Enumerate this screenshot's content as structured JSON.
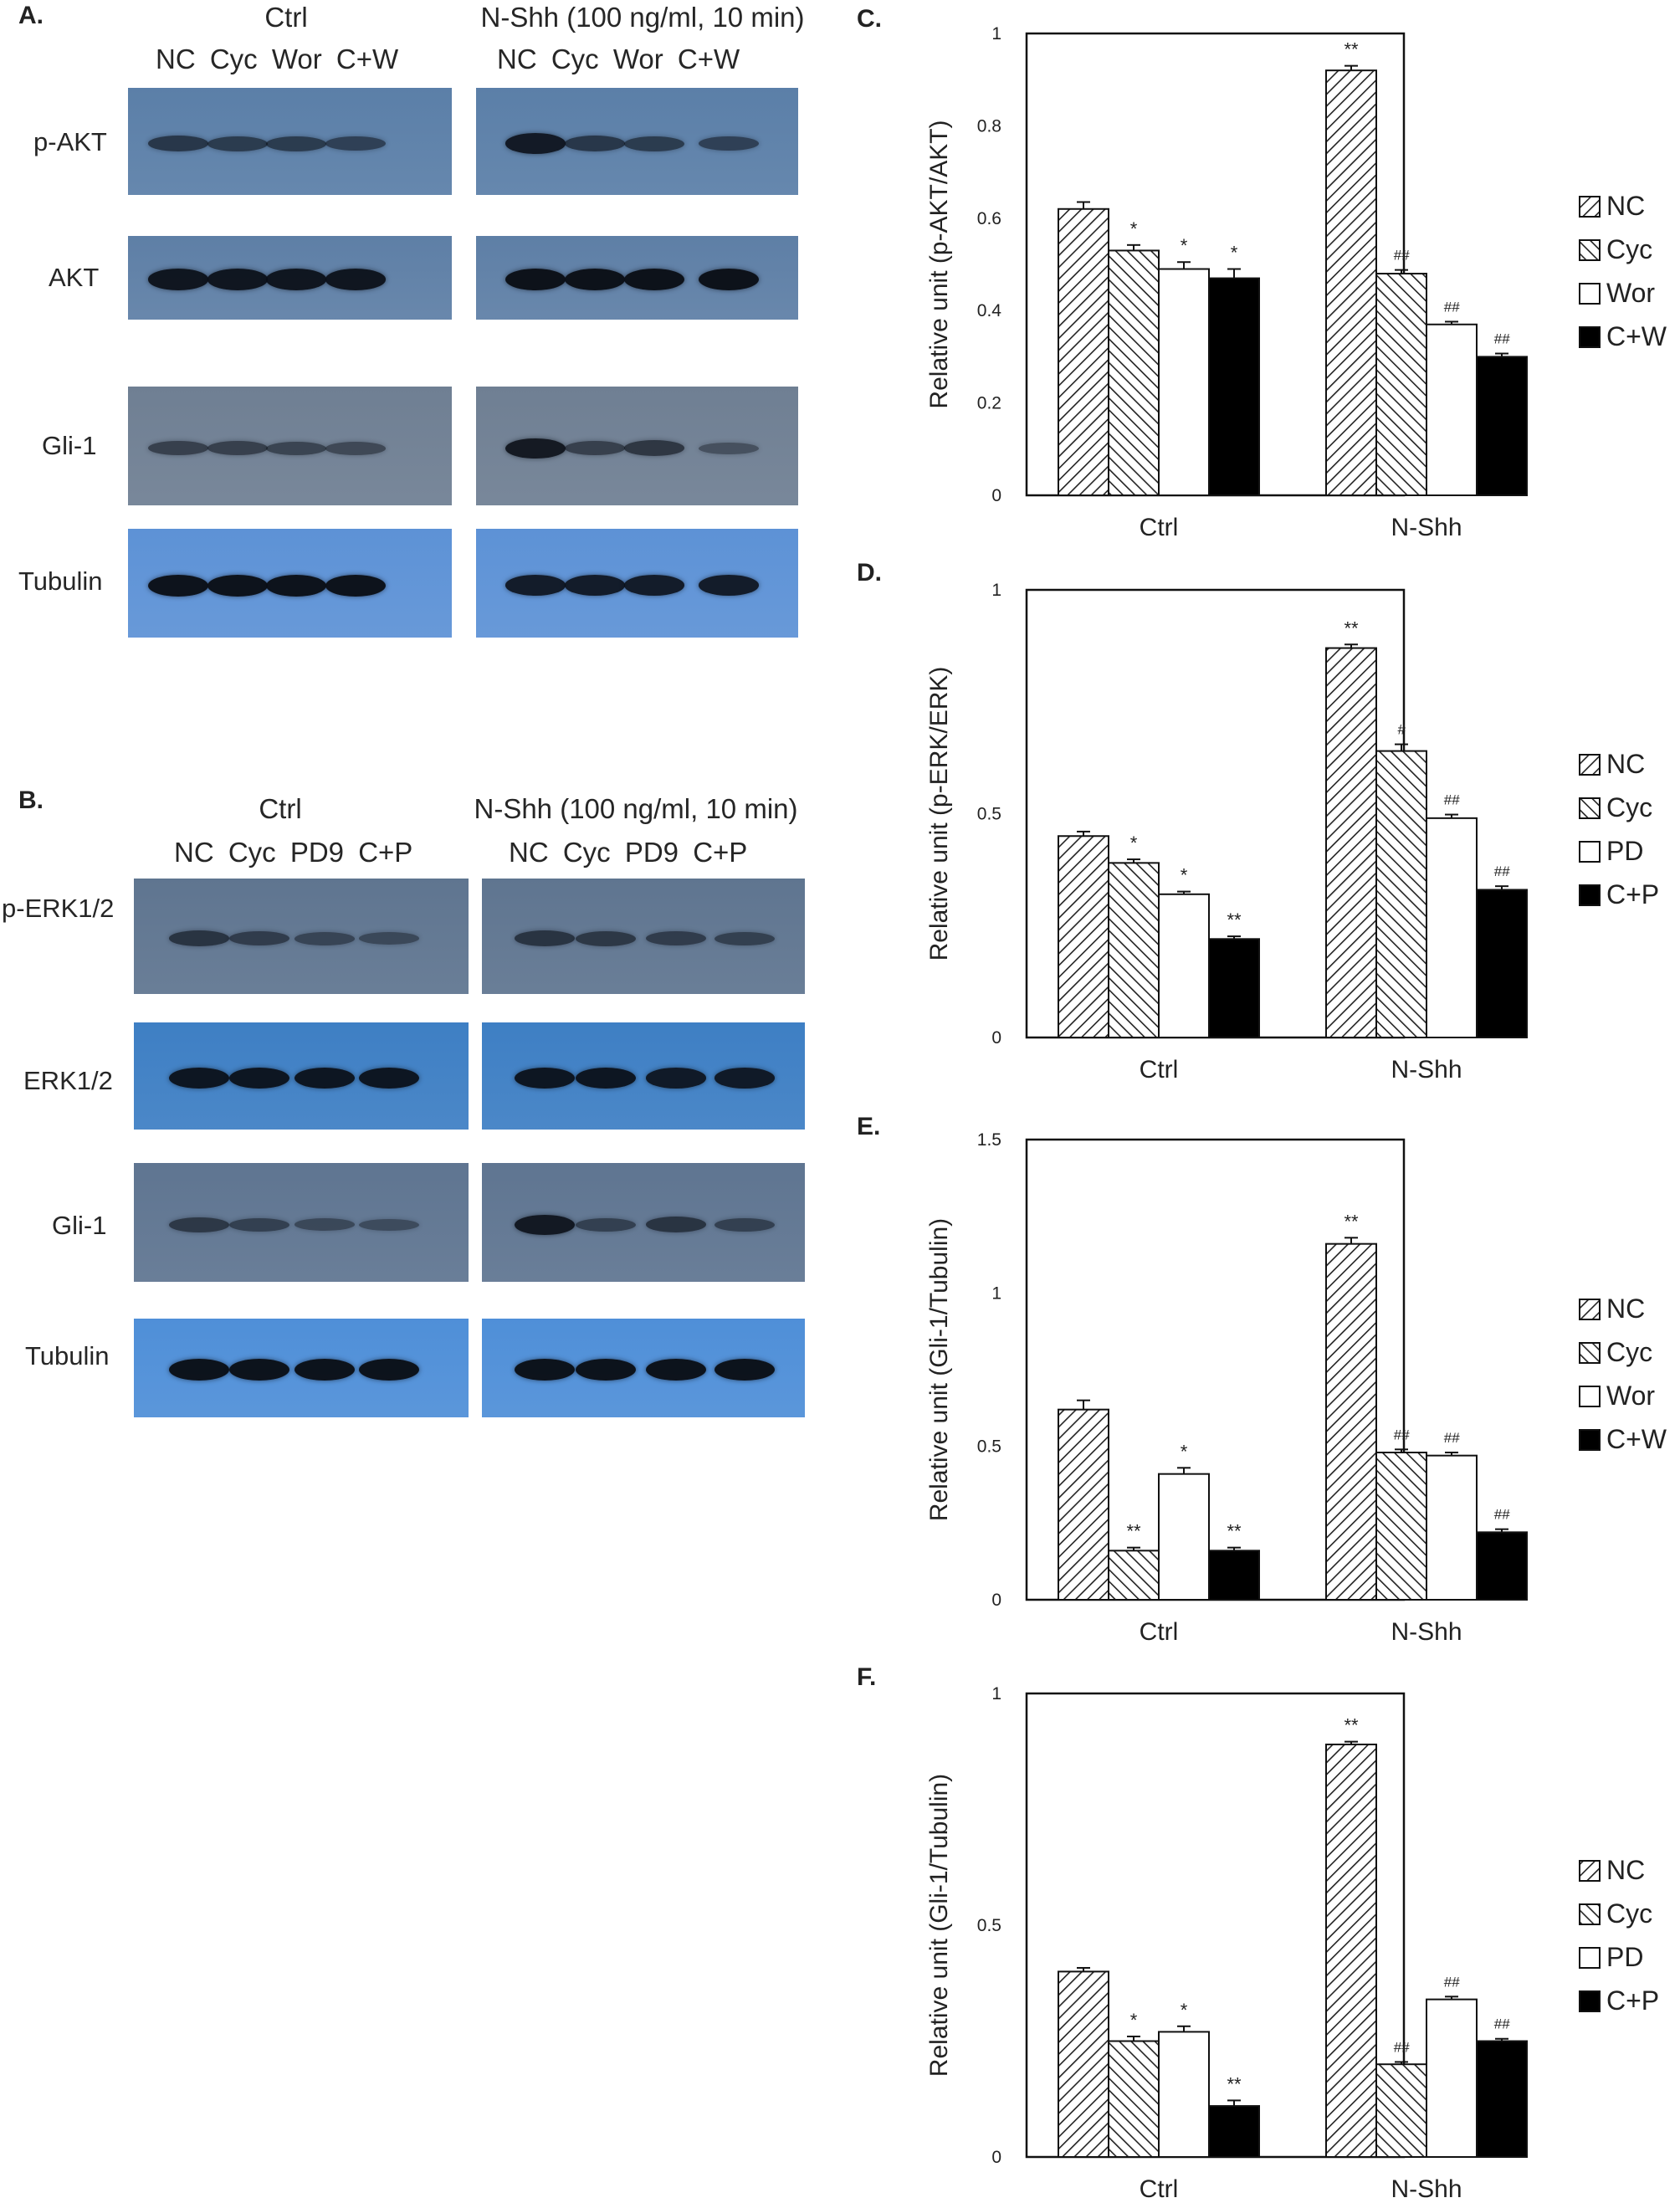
{
  "panels": {
    "A": {
      "letter": "A.",
      "ctrl_header": "Ctrl",
      "shh_header": "N-Shh (100 ng/ml, 10 min)",
      "ctrl_lanes": "NC Cyc Wor C+W",
      "shh_lanes": "NC Cyc Wor C+W",
      "rows": [
        {
          "label": "p-AKT",
          "color": "#5b7fa8",
          "ctrl": [
            0.55,
            0.5,
            0.5,
            0.45
          ],
          "shh": [
            0.9,
            0.55,
            0.5,
            0.45
          ]
        },
        {
          "label": "AKT",
          "color": "#5e7fa6",
          "ctrl": [
            0.95,
            0.95,
            0.95,
            0.95
          ],
          "shh": [
            1.0,
            1.0,
            1.0,
            1.0
          ]
        },
        {
          "label": "Gli-1",
          "color": "#6f7f93",
          "ctrl": [
            0.45,
            0.45,
            0.4,
            0.35
          ],
          "shh": [
            0.9,
            0.45,
            0.55,
            0.25
          ]
        },
        {
          "label": "Tubulin",
          "color": "#5d92d6",
          "ctrl": [
            1.0,
            1.0,
            1.0,
            1.0
          ],
          "shh": [
            0.9,
            0.9,
            0.9,
            0.9
          ]
        }
      ]
    },
    "B": {
      "letter": "B.",
      "ctrl_header": "Ctrl",
      "shh_header": "N-Shh (100 ng/ml, 10 min)",
      "ctrl_lanes": "NC Cyc PD9 C+P",
      "shh_lanes": "NC Cyc PD9 C+P",
      "rows": [
        {
          "label": "p-ERK1/2",
          "color": "#5f7590",
          "ctrl": [
            0.55,
            0.45,
            0.35,
            0.3
          ],
          "shh": [
            0.55,
            0.5,
            0.45,
            0.4
          ]
        },
        {
          "label": "ERK1/2",
          "color": "#3e7fc4",
          "ctrl": [
            0.95,
            0.95,
            0.95,
            0.95
          ],
          "shh": [
            0.95,
            0.95,
            0.9,
            0.9
          ]
        },
        {
          "label": "Gli-1",
          "color": "#5f7591",
          "ctrl": [
            0.5,
            0.4,
            0.3,
            0.25
          ],
          "shh": [
            0.9,
            0.4,
            0.55,
            0.4
          ]
        },
        {
          "label": "Tubulin",
          "color": "#4f8fd8",
          "ctrl": [
            1.0,
            1.0,
            1.0,
            1.0
          ],
          "shh": [
            1.0,
            1.0,
            1.0,
            1.0
          ]
        }
      ]
    },
    "C": {
      "letter": "C."
    },
    "D": {
      "letter": "D."
    },
    "E": {
      "letter": "E."
    },
    "F": {
      "letter": "F."
    }
  },
  "chart_data": [
    {
      "panel": "C",
      "type": "bar",
      "categories": [
        "Ctrl",
        "N-Shh"
      ],
      "series": [
        {
          "name": "NC",
          "values": [
            0.62,
            0.92
          ],
          "errors": [
            0.015,
            0.01
          ],
          "marks": [
            "",
            "**"
          ]
        },
        {
          "name": "Cyc",
          "values": [
            0.53,
            0.48
          ],
          "errors": [
            0.012,
            0.008
          ],
          "marks": [
            "*",
            "##"
          ]
        },
        {
          "name": "Wor",
          "values": [
            0.49,
            0.37
          ],
          "errors": [
            0.015,
            0.006
          ],
          "marks": [
            "*",
            "##"
          ]
        },
        {
          "name": "C+W",
          "values": [
            0.47,
            0.3
          ],
          "errors": [
            0.02,
            0.007
          ],
          "marks": [
            "*",
            "##"
          ]
        }
      ],
      "ylabel": "Relative unit (p-AKT/AKT)",
      "ylim": [
        0,
        1
      ],
      "yticks": [
        "0",
        "0.2",
        "0.4",
        "0.6",
        "0.8",
        "1"
      ],
      "legend_position": "right"
    },
    {
      "panel": "D",
      "type": "bar",
      "categories": [
        "Ctrl",
        "N-Shh"
      ],
      "series": [
        {
          "name": "NC",
          "values": [
            0.45,
            0.87
          ],
          "errors": [
            0.01,
            0.008
          ],
          "marks": [
            "",
            "**"
          ]
        },
        {
          "name": "Cyc",
          "values": [
            0.39,
            0.64
          ],
          "errors": [
            0.008,
            0.015
          ],
          "marks": [
            "*",
            "#"
          ]
        },
        {
          "name": "PD",
          "values": [
            0.32,
            0.49
          ],
          "errors": [
            0.006,
            0.008
          ],
          "marks": [
            "*",
            "##"
          ]
        },
        {
          "name": "C+P",
          "values": [
            0.22,
            0.33
          ],
          "errors": [
            0.006,
            0.008
          ],
          "marks": [
            "**",
            "##"
          ]
        }
      ],
      "ylabel": "Relative unit (p-ERK/ERK)",
      "ylim": [
        0,
        1
      ],
      "yticks": [
        "0",
        "0.5",
        "1"
      ],
      "legend_position": "right"
    },
    {
      "panel": "E",
      "type": "bar",
      "categories": [
        "Ctrl",
        "N-Shh"
      ],
      "series": [
        {
          "name": "NC",
          "values": [
            0.62,
            1.16
          ],
          "errors": [
            0.03,
            0.02
          ],
          "marks": [
            "",
            "**"
          ]
        },
        {
          "name": "Cyc",
          "values": [
            0.16,
            0.48
          ],
          "errors": [
            0.01,
            0.01
          ],
          "marks": [
            "**",
            "##"
          ]
        },
        {
          "name": "Wor",
          "values": [
            0.41,
            0.47
          ],
          "errors": [
            0.02,
            0.01
          ],
          "marks": [
            "*",
            "##"
          ]
        },
        {
          "name": "C+W",
          "values": [
            0.16,
            0.22
          ],
          "errors": [
            0.01,
            0.01
          ],
          "marks": [
            "**",
            "##"
          ]
        }
      ],
      "ylabel": "Relative unit (Gli-1/Tubulin)",
      "ylim": [
        0,
        1.5
      ],
      "yticks": [
        "0",
        "0.5",
        "1",
        "1.5"
      ],
      "legend_position": "right"
    },
    {
      "panel": "F",
      "type": "bar",
      "categories": [
        "Ctrl",
        "N-Shh"
      ],
      "series": [
        {
          "name": "NC",
          "values": [
            0.4,
            0.89
          ],
          "errors": [
            0.008,
            0.006
          ],
          "marks": [
            "",
            "**"
          ]
        },
        {
          "name": "Cyc",
          "values": [
            0.25,
            0.2
          ],
          "errors": [
            0.01,
            0.005
          ],
          "marks": [
            "*",
            "##"
          ]
        },
        {
          "name": "PD",
          "values": [
            0.27,
            0.34
          ],
          "errors": [
            0.012,
            0.006
          ],
          "marks": [
            "*",
            "##"
          ]
        },
        {
          "name": "C+P",
          "values": [
            0.11,
            0.25
          ],
          "errors": [
            0.012,
            0.005
          ],
          "marks": [
            "**",
            "##"
          ]
        }
      ],
      "ylabel": "Relative unit (Gli-1/Tubulin)",
      "ylim": [
        0,
        1
      ],
      "yticks": [
        "0",
        "0.5",
        "1"
      ],
      "legend_position": "right"
    }
  ]
}
